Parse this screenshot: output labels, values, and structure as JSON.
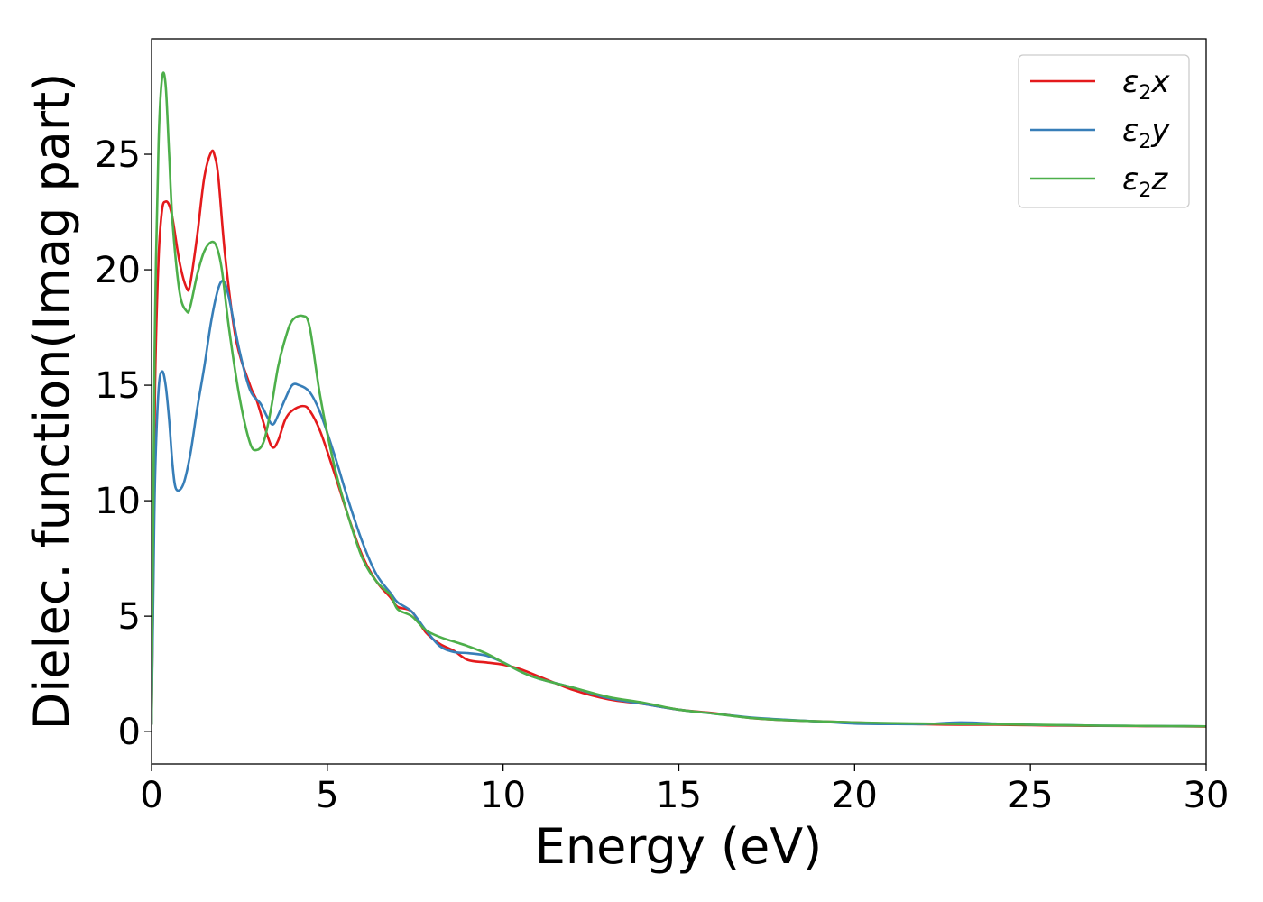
{
  "chart_data": {
    "type": "line",
    "title": "",
    "xlabel": "Energy (eV)",
    "ylabel": "Dielec. function(Imag part)",
    "xlim": [
      0,
      30
    ],
    "ylim": [
      -1.4,
      30
    ],
    "xticks": [
      0,
      5,
      10,
      15,
      20,
      25,
      30
    ],
    "yticks": [
      0,
      5,
      10,
      15,
      20,
      25
    ],
    "grid": false,
    "legend_position": "top-right",
    "series": [
      {
        "name": "ε2x",
        "legend_symbol": "ε",
        "legend_sub": "2",
        "legend_axis": "x",
        "color": "#e41a1c",
        "x": [
          0,
          0.05,
          0.1,
          0.2,
          0.3,
          0.4,
          0.5,
          0.6,
          0.8,
          1.0,
          1.1,
          1.3,
          1.5,
          1.7,
          1.8,
          1.9,
          2.1,
          2.4,
          2.8,
          3.0,
          3.3,
          3.45,
          3.6,
          3.8,
          4.0,
          4.3,
          4.5,
          4.8,
          5.2,
          5.6,
          6.0,
          6.4,
          6.8,
          7.0,
          7.4,
          7.8,
          8.2,
          8.6,
          9.0,
          9.5,
          10.0,
          10.5,
          11.0,
          12.0,
          13.0,
          14.0,
          15.0,
          16.0,
          17.0,
          18.0,
          19.0,
          20.0,
          21.0,
          22.0,
          23.0,
          24.0,
          25.0,
          26.0,
          27.0,
          28.0,
          29.0,
          30.0
        ],
        "y": [
          0.3,
          7.0,
          15.0,
          20.5,
          22.6,
          22.95,
          22.8,
          22.2,
          20.3,
          19.2,
          19.4,
          21.5,
          24.0,
          25.1,
          24.9,
          24.0,
          20.5,
          17.0,
          15.0,
          14.3,
          12.8,
          12.3,
          12.6,
          13.5,
          13.9,
          14.1,
          13.9,
          13.0,
          11.2,
          9.3,
          7.6,
          6.5,
          5.8,
          5.4,
          5.2,
          4.3,
          3.8,
          3.5,
          3.1,
          3.0,
          2.9,
          2.7,
          2.4,
          1.8,
          1.4,
          1.2,
          0.95,
          0.8,
          0.6,
          0.5,
          0.45,
          0.4,
          0.35,
          0.32,
          0.3,
          0.3,
          0.28,
          0.26,
          0.25,
          0.24,
          0.23,
          0.22
        ]
      },
      {
        "name": "ε2y",
        "legend_symbol": "ε",
        "legend_sub": "2",
        "legend_axis": "y",
        "color": "#377eb8",
        "x": [
          0,
          0.05,
          0.1,
          0.2,
          0.3,
          0.4,
          0.5,
          0.6,
          0.7,
          0.9,
          1.1,
          1.3,
          1.5,
          1.7,
          1.9,
          2.05,
          2.2,
          2.5,
          2.8,
          3.1,
          3.3,
          3.45,
          3.6,
          3.8,
          4.0,
          4.2,
          4.5,
          4.8,
          5.2,
          5.6,
          6.0,
          6.4,
          6.8,
          7.0,
          7.4,
          7.8,
          8.2,
          8.6,
          9.0,
          9.5,
          10.0,
          10.5,
          11.0,
          12.0,
          13.0,
          14.0,
          15.0,
          16.0,
          17.0,
          18.0,
          19.0,
          20.0,
          21.0,
          22.0,
          23.0,
          24.0,
          25.0,
          26.0,
          27.0,
          28.0,
          29.0,
          30.0
        ],
        "y": [
          0.3,
          6.0,
          11.0,
          14.8,
          15.6,
          15.0,
          13.5,
          11.5,
          10.5,
          10.7,
          12.0,
          14.0,
          15.8,
          17.8,
          19.2,
          19.5,
          18.8,
          16.5,
          14.8,
          14.2,
          13.6,
          13.3,
          13.7,
          14.4,
          15.0,
          15.0,
          14.7,
          13.8,
          12.0,
          10.0,
          8.2,
          6.8,
          6.0,
          5.6,
          5.2,
          4.4,
          3.7,
          3.45,
          3.4,
          3.3,
          3.0,
          2.6,
          2.3,
          1.9,
          1.45,
          1.2,
          0.95,
          0.78,
          0.62,
          0.52,
          0.44,
          0.35,
          0.33,
          0.33,
          0.4,
          0.35,
          0.3,
          0.28,
          0.26,
          0.25,
          0.24,
          0.23
        ]
      },
      {
        "name": "ε2z",
        "legend_symbol": "ε",
        "legend_sub": "2",
        "legend_axis": "z",
        "color": "#4daf4a",
        "x": [
          0,
          0.05,
          0.1,
          0.2,
          0.3,
          0.4,
          0.5,
          0.6,
          0.8,
          1.0,
          1.1,
          1.3,
          1.5,
          1.7,
          1.85,
          2.0,
          2.2,
          2.5,
          2.8,
          3.0,
          3.2,
          3.4,
          3.6,
          3.8,
          4.0,
          4.3,
          4.5,
          4.8,
          5.2,
          5.6,
          6.0,
          6.4,
          6.8,
          7.0,
          7.4,
          7.8,
          8.2,
          8.6,
          9.0,
          9.5,
          10.0,
          10.5,
          11.0,
          12.0,
          13.0,
          14.0,
          15.0,
          16.0,
          17.0,
          18.0,
          19.0,
          20.0,
          21.0,
          22.0,
          23.0,
          24.0,
          25.0,
          26.0,
          27.0,
          28.0,
          29.0,
          30.0
        ],
        "y": [
          0.3,
          10.0,
          18.0,
          25.5,
          28.3,
          28.0,
          25.0,
          22.0,
          19.0,
          18.2,
          18.4,
          19.8,
          20.8,
          21.2,
          21.0,
          20.0,
          17.5,
          14.5,
          12.5,
          12.2,
          12.6,
          14.0,
          15.8,
          17.0,
          17.8,
          18.0,
          17.5,
          14.5,
          11.5,
          9.3,
          7.5,
          6.5,
          5.9,
          5.3,
          5.0,
          4.4,
          4.1,
          3.9,
          3.7,
          3.4,
          3.0,
          2.6,
          2.3,
          1.9,
          1.5,
          1.25,
          0.95,
          0.78,
          0.6,
          0.5,
          0.45,
          0.4,
          0.37,
          0.35,
          0.33,
          0.32,
          0.3,
          0.28,
          0.26,
          0.25,
          0.24,
          0.23
        ]
      }
    ]
  }
}
